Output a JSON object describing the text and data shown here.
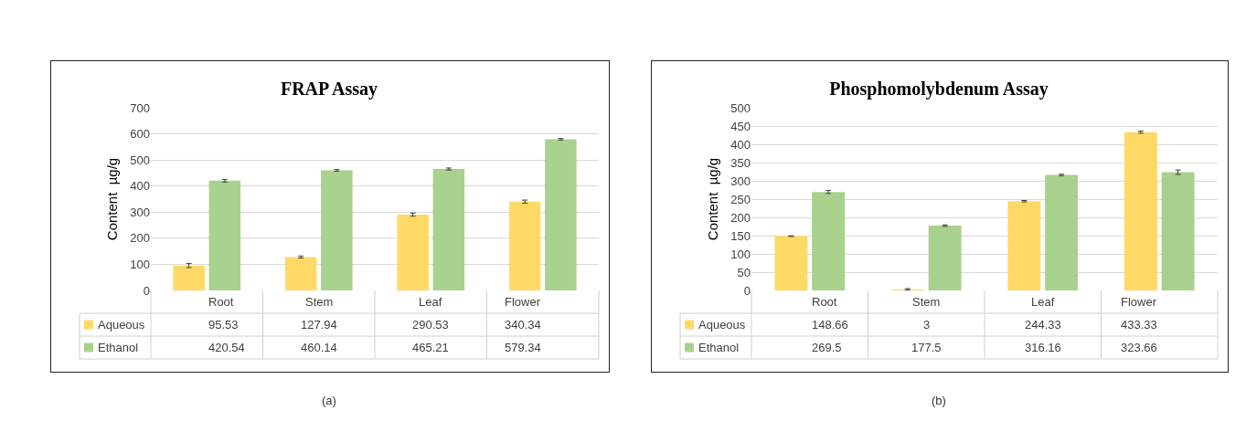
{
  "chart_data": [
    {
      "type": "bar",
      "title": "FRAP Assay",
      "ylabel": "Content  µg/g",
      "categories": [
        "Root",
        "Stem",
        "Leaf",
        "Flower"
      ],
      "series": [
        {
          "name": "Aqueous",
          "color": "#ffd966",
          "values": [
            95.53,
            127.94,
            290.53,
            340.34
          ],
          "errors": [
            8,
            4,
            6,
            6
          ]
        },
        {
          "name": "Ethanol",
          "color": "#a9d18e",
          "values": [
            420.54,
            460.14,
            465.21,
            579.34
          ],
          "errors": [
            5,
            3,
            4,
            3
          ]
        }
      ],
      "legend": "bottom left",
      "ylim": [
        0,
        700
      ],
      "yticks": [
        0,
        100,
        200,
        300,
        400,
        500,
        600,
        700
      ],
      "grid": "y",
      "data_labels": true,
      "annotations": [
        "(a)"
      ]
    },
    {
      "type": "bar",
      "title": "Phosphomolybdenum Assay",
      "ylabel": "Content  µg/g",
      "categories": [
        "Root",
        "Stem",
        "Leaf",
        "Flower"
      ],
      "series": [
        {
          "name": "Aqueous",
          "color": "#ffd966",
          "values": [
            148.66,
            3,
            244.33,
            433.33
          ],
          "errors": [
            1,
            2,
            2,
            3
          ]
        },
        {
          "name": "Ethanol",
          "color": "#a9d18e",
          "values": [
            269.5,
            177.5,
            316.16,
            323.66
          ],
          "errors": [
            4,
            2,
            2,
            6
          ]
        }
      ],
      "legend": "bottom left",
      "ylim": [
        0,
        500
      ],
      "yticks": [
        0,
        50,
        100,
        150,
        200,
        250,
        300,
        350,
        400,
        450,
        500
      ],
      "grid": "y",
      "data_labels": true,
      "annotations": [
        "(b)"
      ]
    }
  ]
}
